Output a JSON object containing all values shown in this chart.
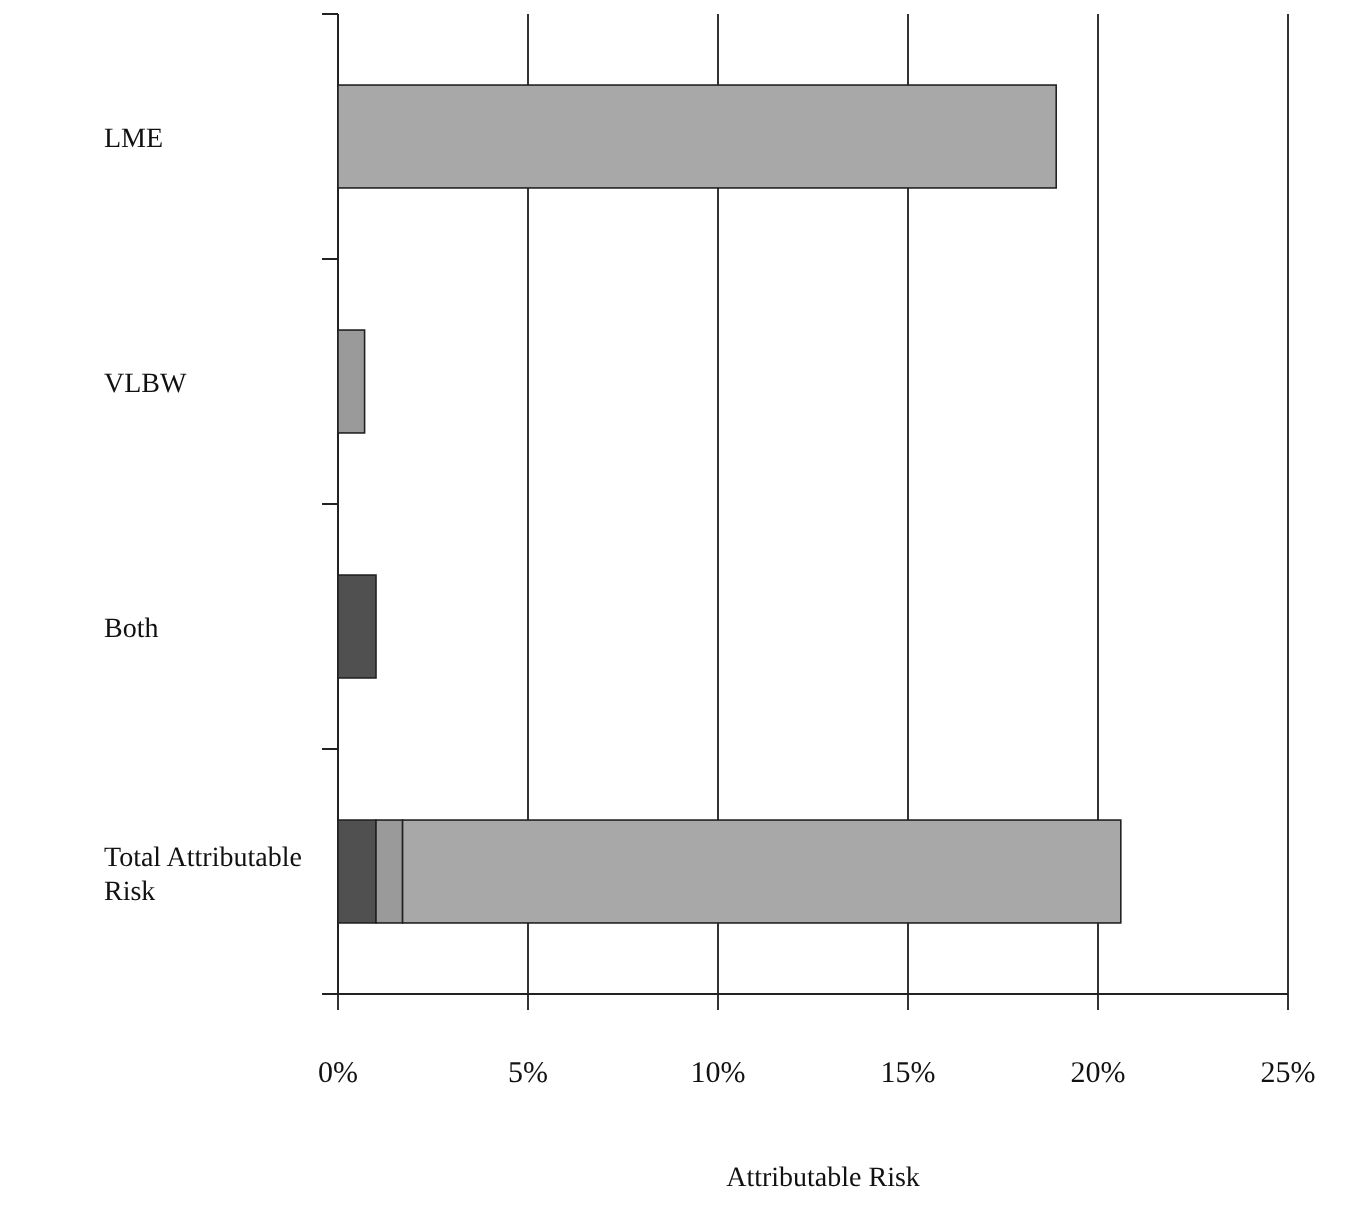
{
  "chart_data": {
    "type": "bar",
    "orientation": "horizontal",
    "stacked": true,
    "xlabel": "Attributable Risk",
    "categories": [
      "LME",
      "VLBW",
      "Both",
      "Total Attributable Risk"
    ],
    "series": [
      {
        "color": "#505050",
        "values": [
          null,
          null,
          1.0,
          1.0
        ]
      },
      {
        "color": "#9a9a9a",
        "values": [
          null,
          0.7,
          null,
          0.7
        ]
      },
      {
        "color": "#a8a8a8",
        "values": [
          18.9,
          null,
          null,
          18.9
        ]
      }
    ],
    "xlim": [
      0,
      25
    ],
    "xticks": [
      {
        "value": 0,
        "label": "0%"
      },
      {
        "value": 5,
        "label": "5%"
      },
      {
        "value": 10,
        "label": "10%"
      },
      {
        "value": 15,
        "label": "15%"
      },
      {
        "value": 20,
        "label": "20%"
      },
      {
        "value": 25,
        "label": "25%"
      }
    ],
    "grid": "x"
  }
}
